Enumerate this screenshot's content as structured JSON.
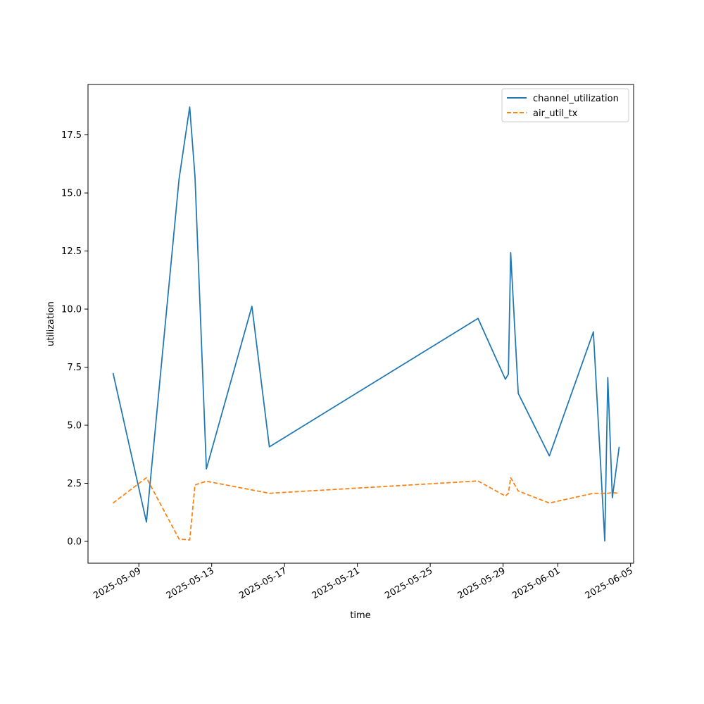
{
  "chart_data": {
    "type": "line",
    "title": "",
    "xlabel": "time",
    "ylabel": "utilization",
    "x_scale": "date",
    "xlim": [
      "2025-05-06T05:00",
      "2025-06-05T04:00"
    ],
    "ylim": [
      -0.94,
      19.67
    ],
    "x_ticks": [
      "2025-05-09",
      "2025-05-13",
      "2025-05-17",
      "2025-05-21",
      "2025-05-25",
      "2025-05-29",
      "2025-06-01",
      "2025-06-05"
    ],
    "y_ticks": [
      "0.0",
      "2.5",
      "5.0",
      "7.5",
      "10.0",
      "12.5",
      "15.0",
      "17.5"
    ],
    "grid": false,
    "legend_position": "top-right",
    "series": [
      {
        "name": "channel_utilization",
        "color": "#1f77b4",
        "dash": "solid",
        "points": [
          [
            "2025-05-07T14:00",
            7.25
          ],
          [
            "2025-05-09T10:00",
            0.83
          ],
          [
            "2025-05-11T05:00",
            15.6
          ],
          [
            "2025-05-11T19:00",
            18.7
          ],
          [
            "2025-05-12T02:00",
            15.7
          ],
          [
            "2025-05-12T17:00",
            3.12
          ],
          [
            "2025-05-15T05:00",
            10.12
          ],
          [
            "2025-05-16T04:00",
            4.07
          ],
          [
            "2025-05-27T15:00",
            9.6
          ],
          [
            "2025-05-29T03:00",
            6.98
          ],
          [
            "2025-05-29T07:00",
            7.2
          ],
          [
            "2025-05-29T10:00",
            12.43
          ],
          [
            "2025-05-29T20:00",
            6.37
          ],
          [
            "2025-05-31T13:00",
            3.68
          ],
          [
            "2025-06-02T23:00",
            9.02
          ],
          [
            "2025-06-03T14:00",
            0.02
          ],
          [
            "2025-06-03T18:00",
            7.05
          ],
          [
            "2025-06-04T00:00",
            1.88
          ],
          [
            "2025-06-04T09:00",
            4.07
          ]
        ]
      },
      {
        "name": "air_util_tx",
        "color": "#ff7f0e",
        "dash": "dashed",
        "points": [
          [
            "2025-05-07T14:00",
            1.65
          ],
          [
            "2025-05-09T10:00",
            2.74
          ],
          [
            "2025-05-11T05:00",
            0.1
          ],
          [
            "2025-05-11T19:00",
            0.06
          ],
          [
            "2025-05-12T02:00",
            2.43
          ],
          [
            "2025-05-12T17:00",
            2.59
          ],
          [
            "2025-05-16T04:00",
            2.07
          ],
          [
            "2025-05-27T15:00",
            2.6
          ],
          [
            "2025-05-29T03:00",
            1.95
          ],
          [
            "2025-05-29T07:00",
            2.07
          ],
          [
            "2025-05-29T10:00",
            2.74
          ],
          [
            "2025-05-29T20:00",
            2.17
          ],
          [
            "2025-05-31T13:00",
            1.65
          ],
          [
            "2025-06-02T23:00",
            2.07
          ],
          [
            "2025-06-03T14:00",
            2.07
          ],
          [
            "2025-06-03T18:00",
            2.07
          ],
          [
            "2025-06-04T00:00",
            2.1
          ],
          [
            "2025-06-04T09:00",
            2.07
          ]
        ]
      }
    ]
  }
}
